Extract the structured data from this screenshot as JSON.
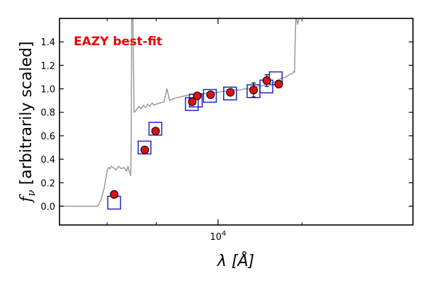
{
  "chart_data": {
    "type": "scatter",
    "title": "",
    "xlabel": "λ [Å]",
    "ylabel": "f_ν [arbitrarily scaled]",
    "x_scale": "log",
    "xlim": [
      2700,
      50000
    ],
    "ylim": [
      -0.16,
      1.6
    ],
    "x_ticks": [
      {
        "value": 10000,
        "label": "10^4"
      }
    ],
    "x_minor_ticks": [
      4000,
      6000,
      20000
    ],
    "y_ticks": [
      0.0,
      0.2,
      0.4,
      0.6,
      0.8,
      1.0,
      1.2,
      1.4
    ],
    "grid": false,
    "annotation": {
      "text": "EAZY best-fit",
      "color": "#ee0000",
      "placement": "top-left"
    },
    "colors": {
      "model": "#999999",
      "model_box": "#2222cc",
      "observed": "#dd1111"
    },
    "series": [
      {
        "kind": "line",
        "x": [
          2700,
          3700,
          3800,
          3900,
          4000,
          4050,
          4100,
          4150,
          4200,
          4300,
          4400,
          4500,
          4600,
          4700,
          4750,
          4800,
          4860,
          4880,
          4890,
          4900,
          4950,
          5000,
          5100,
          5200,
          5300,
          5400,
          5500,
          5600,
          5700,
          5800,
          5900,
          6000,
          6200,
          6400,
          6563,
          6700,
          6800,
          7000,
          7300,
          7600,
          8000,
          8500,
          9000,
          9500,
          10000,
          10500,
          11000,
          11500,
          12000,
          12500,
          13000,
          13500,
          14000,
          14500,
          15000,
          15500,
          16000,
          16500,
          17000,
          17500,
          18000,
          18500,
          18700,
          18800,
          18900,
          19000,
          19100,
          19300,
          19500,
          19700,
          19900,
          20000
        ],
        "y": [
          0.0,
          0.0,
          0.05,
          0.15,
          0.3,
          0.33,
          0.32,
          0.34,
          0.33,
          0.31,
          0.34,
          0.32,
          0.33,
          0.3,
          0.34,
          0.3,
          0.26,
          0.5,
          1.0,
          1.6,
          1.6,
          0.8,
          0.82,
          0.85,
          0.83,
          0.86,
          0.84,
          0.87,
          0.85,
          0.88,
          0.86,
          0.87,
          0.88,
          0.89,
          1.0,
          0.9,
          0.91,
          0.92,
          0.93,
          0.94,
          0.95,
          0.96,
          0.96,
          0.97,
          0.97,
          0.98,
          0.98,
          0.99,
          0.99,
          1.0,
          1.0,
          1.01,
          1.02,
          1.03,
          1.04,
          1.05,
          1.06,
          1.08,
          1.09,
          1.1,
          1.12,
          1.13,
          1.15,
          1.14,
          1.4,
          1.6,
          1.6,
          1.55,
          1.6,
          1.6,
          1.62,
          1.6
        ]
      },
      {
        "kind": "box",
        "x": [
          4240,
          5450,
          5960,
          8050,
          8320,
          9350,
          11040,
          13400,
          14900,
          16100
        ],
        "y": [
          0.03,
          0.5,
          0.66,
          0.87,
          0.9,
          0.94,
          0.96,
          0.98,
          1.02,
          1.09
        ]
      },
      {
        "kind": "point",
        "x": [
          4240,
          5460,
          5970,
          8080,
          8420,
          9400,
          11070,
          13410,
          14950,
          16500
        ],
        "y": [
          0.1,
          0.48,
          0.64,
          0.89,
          0.94,
          0.95,
          0.97,
          0.99,
          1.07,
          1.04
        ],
        "yerr": [
          0.03,
          0.02,
          0.02,
          0.02,
          0.02,
          0.02,
          0.02,
          0.06,
          0.05,
          0.03
        ]
      }
    ]
  }
}
